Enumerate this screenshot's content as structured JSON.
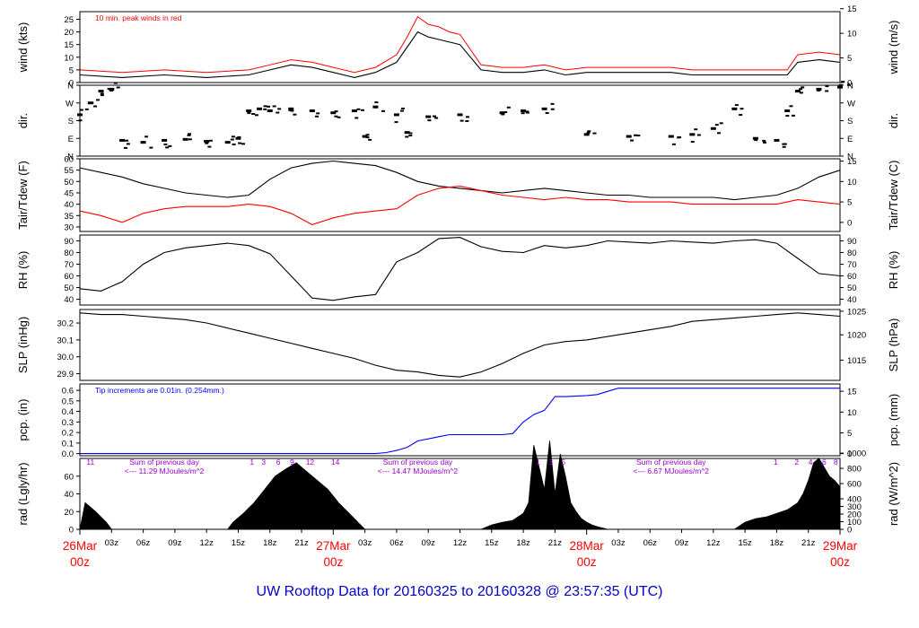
{
  "title": "UW Rooftop Data for 20160325  to  20160328 @ 23:57:35  (UTC)",
  "colors": {
    "black": "#000000",
    "red": "#ff0000",
    "blue": "#0000ff",
    "purple": "#9900cc",
    "title": "#0000cc"
  },
  "time_axis": {
    "range_hours": [
      0,
      72
    ],
    "hour_tick_labels": [
      {
        "t": 3,
        "label": "03z"
      },
      {
        "t": 6,
        "label": "06z"
      },
      {
        "t": 9,
        "label": "09z"
      },
      {
        "t": 12,
        "label": "12z"
      },
      {
        "t": 15,
        "label": "15z"
      },
      {
        "t": 18,
        "label": "18z"
      },
      {
        "t": 21,
        "label": "21z"
      },
      {
        "t": 27,
        "label": "03z"
      },
      {
        "t": 30,
        "label": "06z"
      },
      {
        "t": 33,
        "label": "09z"
      },
      {
        "t": 36,
        "label": "12z"
      },
      {
        "t": 39,
        "label": "15z"
      },
      {
        "t": 42,
        "label": "18z"
      },
      {
        "t": 45,
        "label": "21z"
      },
      {
        "t": 51,
        "label": "03z"
      },
      {
        "t": 54,
        "label": "06z"
      },
      {
        "t": 57,
        "label": "09z"
      },
      {
        "t": 60,
        "label": "12z"
      },
      {
        "t": 63,
        "label": "15z"
      },
      {
        "t": 66,
        "label": "18z"
      },
      {
        "t": 69,
        "label": "21z"
      }
    ],
    "day_labels": [
      {
        "t": 0,
        "date": "26Mar",
        "hour": "00z"
      },
      {
        "t": 24,
        "date": "27Mar",
        "hour": "00z"
      },
      {
        "t": 48,
        "date": "28Mar",
        "hour": "00z"
      },
      {
        "t": 72,
        "date": "29Mar",
        "hour": "00z"
      }
    ]
  },
  "chart_data": [
    {
      "id": "wind",
      "type": "line",
      "ylabel": "wind (kts)",
      "ylabel_right": "wind (m/s)",
      "ylim": [
        0,
        28
      ],
      "yticks": [
        0,
        5,
        10,
        15,
        20,
        25
      ],
      "yticks_right": [
        {
          "v": 0,
          "label": "0"
        },
        {
          "v": 9.72,
          "label": "5"
        },
        {
          "v": 19.44,
          "label": "10"
        },
        {
          "v": 29.16,
          "label": "15"
        }
      ],
      "annotation": "10 min. peak winds in red",
      "x": [
        0,
        4,
        8,
        12,
        16,
        18,
        20,
        22,
        24,
        26,
        28,
        30,
        31,
        32,
        33,
        34,
        35,
        36,
        38,
        40,
        42,
        44,
        46,
        48,
        50,
        52,
        54,
        56,
        58,
        60,
        62,
        64,
        66,
        67,
        68,
        70,
        72
      ],
      "series": [
        {
          "color": "#000000",
          "values": [
            3,
            2,
            3,
            2,
            3,
            5,
            7,
            6,
            4,
            2,
            4,
            8,
            14,
            20,
            18,
            17,
            16,
            15,
            5,
            4,
            4,
            5,
            3,
            4,
            4,
            4,
            4,
            4,
            3,
            3,
            3,
            3,
            3,
            3,
            8,
            9,
            8
          ]
        },
        {
          "color": "#ff0000",
          "values": [
            5,
            4,
            5,
            4,
            5,
            7,
            9,
            8,
            6,
            4,
            6,
            11,
            18,
            26,
            23,
            22,
            20,
            19,
            7,
            6,
            6,
            7,
            5,
            6,
            6,
            6,
            6,
            6,
            5,
            5,
            5,
            5,
            5,
            5,
            11,
            12,
            11
          ]
        }
      ]
    },
    {
      "id": "dir",
      "type": "scatter",
      "ylabel": "dir.",
      "ylabel_right": "dir.",
      "ylim": [
        0,
        360
      ],
      "yticks": [
        {
          "v": 0,
          "label": "N"
        },
        {
          "v": 90,
          "label": "E"
        },
        {
          "v": 180,
          "label": "S"
        },
        {
          "v": 270,
          "label": "W"
        },
        {
          "v": 360,
          "label": "N"
        }
      ],
      "x": [
        0,
        1,
        2,
        3,
        4,
        6,
        8,
        10,
        12,
        14,
        15,
        16,
        17,
        18,
        20,
        22,
        24,
        26,
        27,
        28,
        30,
        31,
        33,
        36,
        40,
        42,
        44,
        48,
        52,
        56,
        58,
        60,
        62,
        64,
        66,
        67,
        68,
        70,
        72
      ],
      "values": [
        210,
        270,
        330,
        340,
        80,
        70,
        80,
        85,
        75,
        70,
        90,
        230,
        240,
        230,
        240,
        230,
        220,
        230,
        100,
        250,
        210,
        120,
        200,
        210,
        220,
        230,
        240,
        110,
        100,
        100,
        110,
        140,
        240,
        90,
        80,
        230,
        330,
        340,
        350
      ]
    },
    {
      "id": "temp",
      "type": "line",
      "ylabel": "Tair/Tdew (F)",
      "ylabel_right": "Tair/Tdew (C)",
      "ylim": [
        28,
        60
      ],
      "yticks": [
        30,
        35,
        40,
        45,
        50,
        55,
        60
      ],
      "yticks_right": [
        {
          "v": 32,
          "label": "0"
        },
        {
          "v": 41,
          "label": "5"
        },
        {
          "v": 50,
          "label": "10"
        },
        {
          "v": 59,
          "label": "15"
        }
      ],
      "x": [
        0,
        2,
        4,
        6,
        8,
        10,
        12,
        14,
        16,
        18,
        20,
        22,
        24,
        26,
        28,
        30,
        32,
        34,
        36,
        38,
        40,
        42,
        44,
        46,
        48,
        50,
        52,
        54,
        56,
        58,
        60,
        62,
        64,
        66,
        68,
        70,
        72
      ],
      "series": [
        {
          "color": "#000000",
          "values": [
            56,
            54,
            52,
            49,
            47,
            45,
            44,
            43,
            44,
            51,
            56,
            58,
            59,
            58,
            57,
            54,
            50,
            48,
            47,
            46,
            45,
            46,
            47,
            46,
            45,
            44,
            44,
            43,
            43,
            43,
            43,
            42,
            43,
            44,
            47,
            52,
            55
          ]
        },
        {
          "color": "#ff0000",
          "values": [
            37,
            35,
            32,
            36,
            38,
            39,
            39,
            39,
            40,
            39,
            36,
            31,
            34,
            36,
            37,
            38,
            44,
            47,
            48,
            46,
            44,
            43,
            42,
            43,
            42,
            42,
            41,
            41,
            41,
            40,
            40,
            40,
            40,
            40,
            42,
            41,
            40
          ]
        }
      ]
    },
    {
      "id": "rh",
      "type": "line",
      "ylabel": "RH (%)",
      "ylabel_right": "RH (%)",
      "ylim": [
        35,
        95
      ],
      "yticks": [
        40,
        50,
        60,
        70,
        80,
        90
      ],
      "yticks_right": [
        {
          "v": 40,
          "label": "40"
        },
        {
          "v": 50,
          "label": "50"
        },
        {
          "v": 60,
          "label": "60"
        },
        {
          "v": 70,
          "label": "70"
        },
        {
          "v": 80,
          "label": "80"
        },
        {
          "v": 90,
          "label": "90"
        }
      ],
      "x": [
        0,
        2,
        4,
        6,
        8,
        10,
        12,
        14,
        16,
        18,
        20,
        22,
        24,
        26,
        28,
        30,
        32,
        34,
        36,
        38,
        40,
        42,
        44,
        46,
        48,
        50,
        52,
        54,
        56,
        58,
        60,
        62,
        64,
        66,
        68,
        70,
        72
      ],
      "series": [
        {
          "color": "#000000",
          "values": [
            49,
            47,
            55,
            70,
            80,
            84,
            86,
            88,
            86,
            79,
            60,
            41,
            39,
            42,
            44,
            72,
            80,
            92,
            93,
            85,
            81,
            80,
            86,
            84,
            86,
            90,
            89,
            88,
            90,
            89,
            88,
            90,
            91,
            88,
            75,
            62,
            60
          ]
        }
      ]
    },
    {
      "id": "slp",
      "type": "line",
      "ylabel": "SLP (inHg)",
      "ylabel_right": "SLP (hPa)",
      "ylim": [
        29.86,
        30.28
      ],
      "yticks": [
        29.9,
        30.0,
        30.1,
        30.2
      ],
      "yticks_right": [
        {
          "v": 29.98,
          "label": "1015"
        },
        {
          "v": 30.13,
          "label": "1020"
        },
        {
          "v": 30.27,
          "label": "1025"
        }
      ],
      "x": [
        0,
        2,
        4,
        6,
        8,
        10,
        12,
        14,
        16,
        18,
        20,
        22,
        24,
        26,
        28,
        30,
        32,
        34,
        36,
        38,
        40,
        42,
        44,
        46,
        48,
        50,
        52,
        54,
        56,
        58,
        60,
        62,
        64,
        66,
        68,
        70,
        72
      ],
      "series": [
        {
          "color": "#000000",
          "values": [
            30.26,
            30.25,
            30.25,
            30.24,
            30.23,
            30.22,
            30.2,
            30.17,
            30.14,
            30.11,
            30.08,
            30.05,
            30.02,
            29.99,
            29.95,
            29.92,
            29.91,
            29.89,
            29.88,
            29.91,
            29.96,
            30.02,
            30.07,
            30.09,
            30.1,
            30.12,
            30.14,
            30.16,
            30.18,
            30.21,
            30.22,
            30.23,
            30.24,
            30.25,
            30.26,
            30.25,
            30.24
          ]
        }
      ]
    },
    {
      "id": "pcp",
      "type": "line",
      "ylabel": "pcp. (in)",
      "ylabel_right": "pcp. (mm)",
      "ylim": [
        -0.02,
        0.66
      ],
      "yticks": [
        0.0,
        0.1,
        0.2,
        0.3,
        0.4,
        0.5,
        0.6
      ],
      "yticks_right": [
        {
          "v": 0,
          "label": "0"
        },
        {
          "v": 0.197,
          "label": "5"
        },
        {
          "v": 0.394,
          "label": "10"
        },
        {
          "v": 0.591,
          "label": "15"
        }
      ],
      "annotation": "Tip increments are 0.01in. (0.254mm.)",
      "x": [
        0,
        28,
        29,
        30,
        31,
        32,
        34,
        35,
        36,
        38,
        40,
        41,
        42,
        43,
        44,
        45,
        46,
        48,
        49,
        50,
        51,
        52,
        72
      ],
      "series": [
        {
          "color": "#0000ff",
          "values": [
            0,
            0,
            0.01,
            0.03,
            0.06,
            0.12,
            0.16,
            0.18,
            0.18,
            0.18,
            0.18,
            0.19,
            0.3,
            0.37,
            0.41,
            0.54,
            0.54,
            0.55,
            0.56,
            0.59,
            0.62,
            0.62,
            0.62
          ]
        }
      ]
    },
    {
      "id": "rad",
      "type": "area",
      "ylabel": "rad (Lgly/hr)",
      "ylabel_right": "rad (W/m^2)",
      "ylim": [
        0,
        80
      ],
      "yticks": [
        0,
        20,
        40,
        60
      ],
      "yticks_right": [
        {
          "v": 0,
          "label": "0"
        },
        {
          "v": 8.6,
          "label": "100"
        },
        {
          "v": 17.2,
          "label": "200"
        },
        {
          "v": 25.8,
          "label": "300"
        },
        {
          "v": 34.4,
          "label": "400"
        },
        {
          "v": 51.6,
          "label": "600"
        },
        {
          "v": 68.8,
          "label": "800"
        },
        {
          "v": 86,
          "label": "1000"
        }
      ],
      "x": [
        0,
        0.5,
        1.5,
        2.5,
        3,
        14,
        14.5,
        15.5,
        16.5,
        17.5,
        18.5,
        19.5,
        20.5,
        21.5,
        22.5,
        23.5,
        24.5,
        25.5,
        26.5,
        27,
        38,
        39,
        40,
        41,
        42,
        42.5,
        43,
        43.5,
        44,
        44.5,
        45,
        45.5,
        46,
        46.5,
        47,
        47.5,
        48,
        48.5,
        49,
        50,
        62,
        63,
        64,
        65,
        66,
        67,
        68,
        68.5,
        69,
        69.5,
        70,
        70.5,
        71,
        71.5,
        72
      ],
      "series": [
        {
          "color": "#000000",
          "values": [
            0,
            30,
            20,
            8,
            0,
            0,
            8,
            18,
            30,
            45,
            60,
            68,
            75,
            65,
            55,
            45,
            30,
            18,
            6,
            0,
            0,
            5,
            8,
            10,
            18,
            30,
            95,
            70,
            45,
            100,
            40,
            85,
            60,
            30,
            20,
            12,
            8,
            5,
            3,
            0,
            0,
            8,
            12,
            14,
            18,
            22,
            30,
            40,
            55,
            75,
            80,
            70,
            60,
            55,
            48
          ]
        }
      ],
      "annotations": [
        {
          "t": 8,
          "lines": [
            "Sum of previous day",
            "<--- 11.29 MJoules/m^2"
          ]
        },
        {
          "t": 32,
          "lines": [
            "Sum of previous day",
            "<--- 14.47 MJoules/m^2"
          ]
        },
        {
          "t": 56,
          "lines": [
            "Sum of previous day",
            "<--- 6.67 MJoules/m^2"
          ]
        }
      ],
      "hour_marks": [
        {
          "t": 1,
          "label": "11"
        },
        {
          "t": 16.3,
          "label": "1"
        },
        {
          "t": 17.4,
          "label": "3"
        },
        {
          "t": 18.8,
          "label": "6"
        },
        {
          "t": 20.1,
          "label": "9"
        },
        {
          "t": 21.8,
          "label": "12"
        },
        {
          "t": 24.2,
          "label": "14"
        },
        {
          "t": 43.4,
          "label": "1"
        },
        {
          "t": 44.6,
          "label": "3"
        },
        {
          "t": 45.8,
          "label": "5"
        },
        {
          "t": 65.9,
          "label": "1"
        },
        {
          "t": 67.9,
          "label": "2"
        },
        {
          "t": 69.2,
          "label": "4"
        },
        {
          "t": 70.5,
          "label": "6"
        },
        {
          "t": 71.6,
          "label": "8"
        }
      ]
    }
  ]
}
